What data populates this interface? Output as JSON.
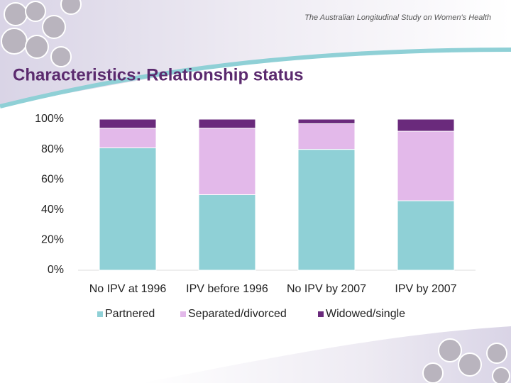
{
  "slide": {
    "header": "The Australian Longitudinal Study on Women's Health"
  },
  "chart_data": {
    "type": "stacked-bar",
    "title": "Characteristics: Relationship status",
    "categories": [
      "No IPV at 1996",
      "IPV before 1996",
      "No IPV by 2007",
      "IPV by 2007"
    ],
    "series": [
      {
        "name": "Partnered",
        "color": "#8fd0d6",
        "values": [
          81,
          50,
          80,
          46
        ]
      },
      {
        "name": "Separated/divorced",
        "color": "#e3b9ea",
        "values": [
          13,
          44,
          17,
          46
        ]
      },
      {
        "name": "Widowed/single",
        "color": "#6a2a7c",
        "values": [
          6,
          6,
          3,
          8
        ]
      }
    ],
    "ylim": [
      0,
      100
    ],
    "yticks": [
      {
        "value": 0,
        "label": "0%"
      },
      {
        "value": 20,
        "label": "20%"
      },
      {
        "value": 40,
        "label": "40%"
      },
      {
        "value": 60,
        "label": "60%"
      },
      {
        "value": 80,
        "label": "80%"
      },
      {
        "value": 100,
        "label": "100%"
      }
    ],
    "legend": "bottom"
  }
}
